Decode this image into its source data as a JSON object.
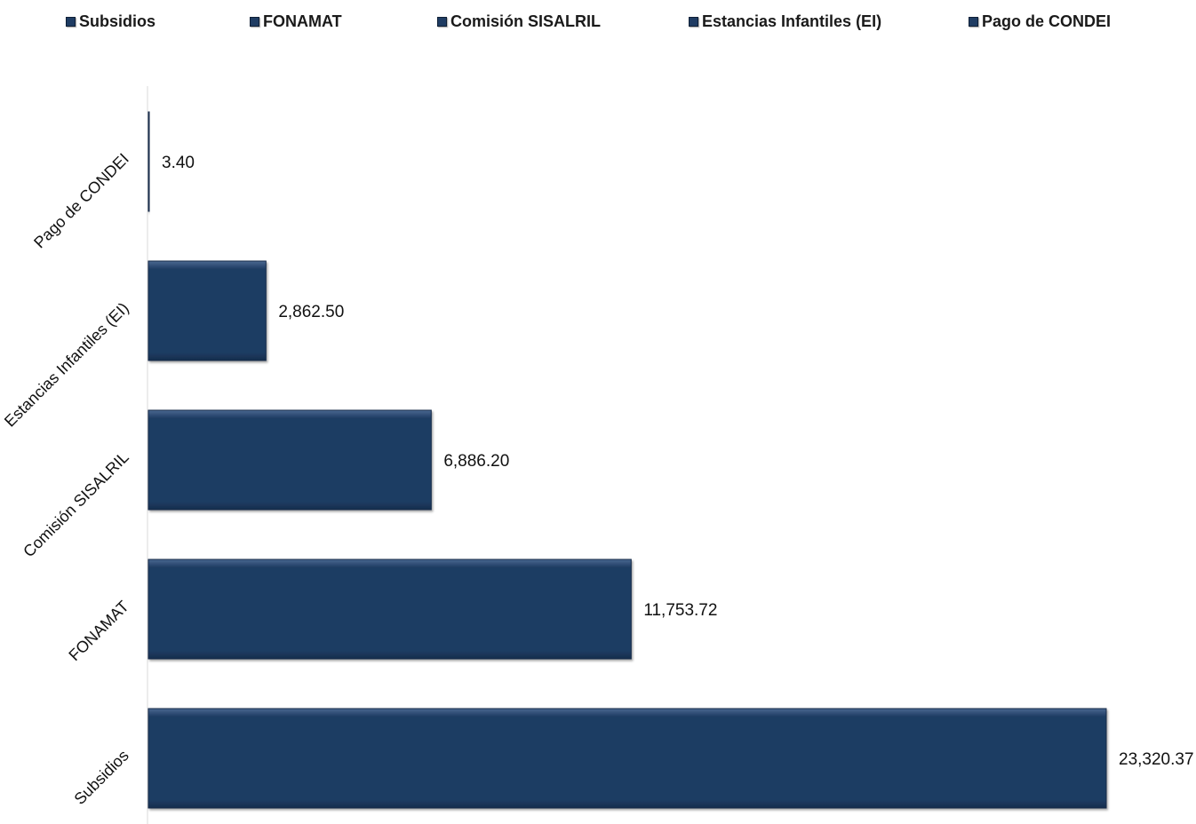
{
  "legend": [
    "Subsidios",
    "FONAMAT",
    "Comisión SISALRIL",
    "Estancias Infantiles (EI)",
    "Pago de CONDEI"
  ],
  "chart_data": {
    "type": "bar",
    "orientation": "horizontal",
    "categories": [
      "Subsidios",
      "FONAMAT",
      "Comisión SISALRIL",
      "Estancias Infantiles (EI)",
      "Pago de CONDEI"
    ],
    "values": [
      23320.37,
      11753.72,
      6886.2,
      2862.5,
      3.4
    ],
    "value_labels": [
      "23,320.37",
      "11,753.72",
      "6,886.20",
      "2,862.50",
      "3.40"
    ],
    "bar_color": "#1f3c63",
    "legend_position": "top",
    "grid": false
  }
}
